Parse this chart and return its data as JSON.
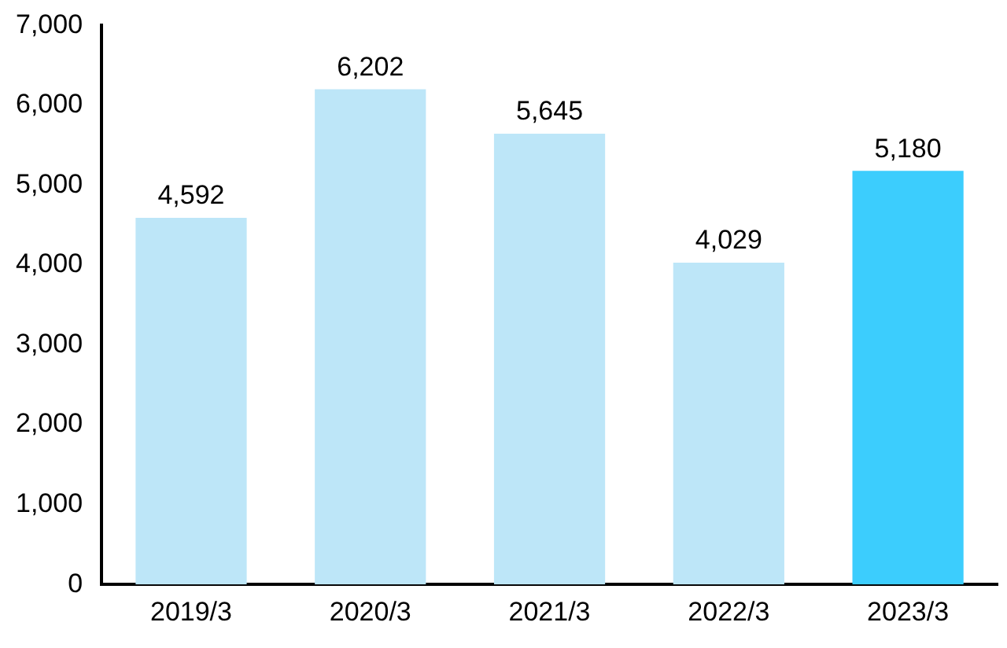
{
  "chart_data": {
    "type": "bar",
    "categories": [
      "2019/3",
      "2020/3",
      "2021/3",
      "2022/3",
      "2023/3"
    ],
    "values": [
      4592,
      6202,
      5645,
      4029,
      5180
    ],
    "value_labels": [
      "4,592",
      "6,202",
      "5,645",
      "4,029",
      "5,180"
    ],
    "colors": [
      "#bde6f8",
      "#bde6f8",
      "#bde6f8",
      "#bde6f8",
      "#3ccdfd"
    ],
    "ylim": [
      0,
      7000
    ],
    "yticks": [
      0,
      {
        "value": 1000,
        "label": "1,000"
      },
      {
        "value": 2000,
        "label": "2,000"
      },
      {
        "value": 3000,
        "label": "3,000"
      },
      {
        "value": 4000,
        "label": "4,000"
      },
      {
        "value": 5000,
        "label": "5,000"
      },
      {
        "value": 6000,
        "label": "6,000"
      },
      {
        "value": 7000,
        "label": "7,000"
      }
    ],
    "grid": false,
    "legend": false
  }
}
